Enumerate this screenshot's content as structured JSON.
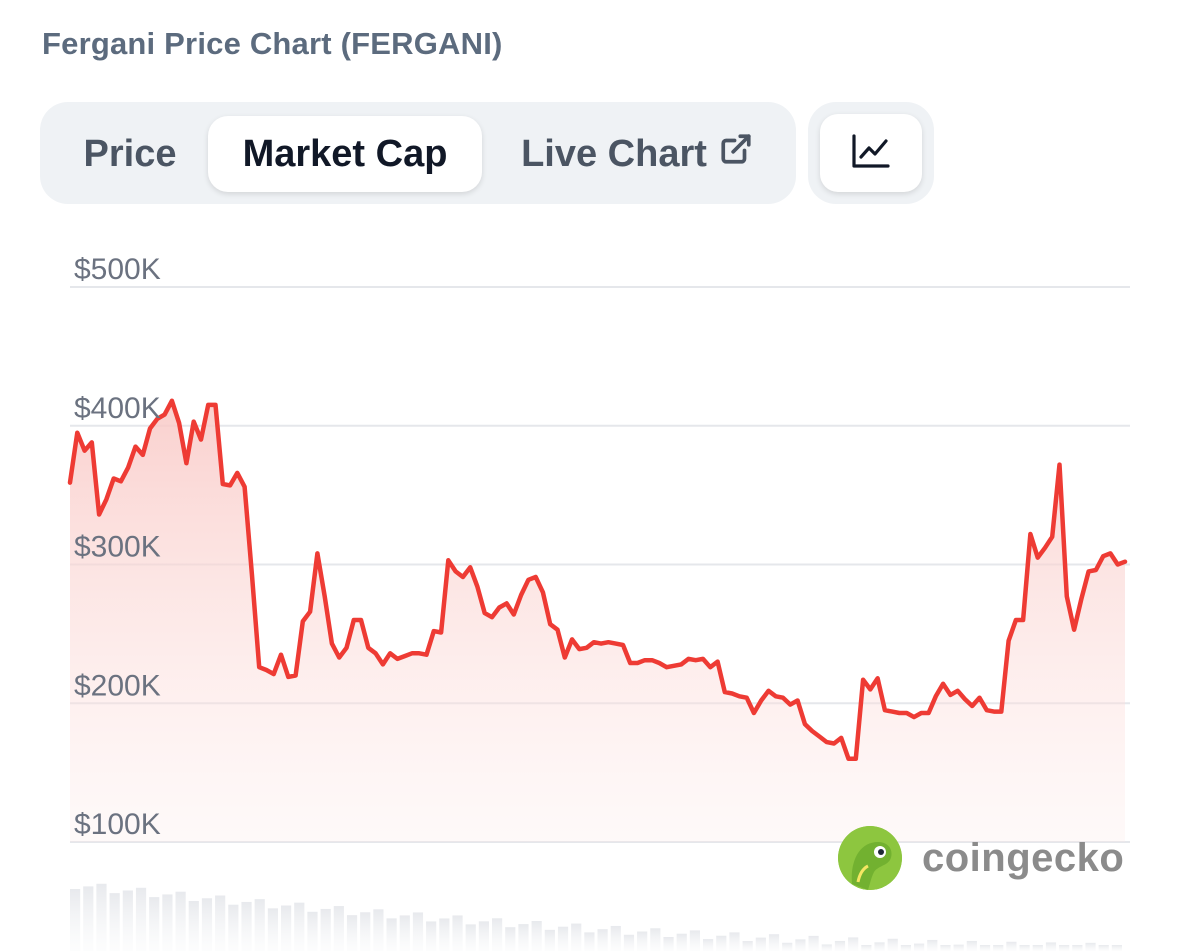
{
  "header": {
    "title": "Fergani Price Chart (FERGANI)"
  },
  "tabs": [
    {
      "label": "Price",
      "active": false
    },
    {
      "label": "Market Cap",
      "active": true
    },
    {
      "label": "Live Chart",
      "active": false,
      "icon": "external-link-icon"
    }
  ],
  "chart_type_button": {
    "icon": "line-chart-icon"
  },
  "watermark": {
    "text": "coingecko",
    "icon": "coingecko-logo"
  },
  "colors": {
    "line": "#ee3b34",
    "area_top": "#f9c8c5",
    "grid": "#e5e7eb",
    "tab_bg": "#eff2f5"
  },
  "chart_data": {
    "type": "area",
    "title": "",
    "xlabel": "",
    "ylabel": "",
    "ylim": [
      100000,
      500000
    ],
    "y_ticks": [
      500000,
      400000,
      300000,
      200000,
      100000
    ],
    "y_tick_labels": [
      "$500K",
      "$400K",
      "$300K",
      "$200K",
      "$100K"
    ],
    "grid": true,
    "legend": "none",
    "series": [
      {
        "values": [
          359000,
          395000,
          382000,
          388000,
          336000,
          347000,
          362000,
          360000,
          370000,
          385000,
          379000,
          398000,
          405000,
          408000,
          418000,
          402000,
          373000,
          403000,
          390000,
          415000,
          415000,
          358000,
          357000,
          366000,
          356000,
          293000,
          226000,
          224000,
          221000,
          235000,
          219000,
          220000,
          259000,
          266000,
          308000,
          277000,
          243000,
          233000,
          240000,
          260000,
          260000,
          240000,
          236000,
          228000,
          236000,
          232000,
          234000,
          236000,
          236000,
          235000,
          252000,
          251000,
          303000,
          295000,
          291000,
          298000,
          284000,
          265000,
          262000,
          269000,
          272000,
          264000,
          278000,
          289000,
          291000,
          280000,
          257000,
          253000,
          233000,
          246000,
          239000,
          240000,
          244000,
          243000,
          244000,
          243000,
          242000,
          229000,
          229000,
          231000,
          231000,
          229000,
          226000,
          227000,
          228000,
          232000,
          231000,
          232000,
          226000,
          230000,
          208000,
          207000,
          205000,
          204000,
          193000,
          202000,
          209000,
          205000,
          204000,
          199000,
          202000,
          185000,
          180000,
          176000,
          172000,
          171000,
          175000,
          160000,
          160000,
          217000,
          210000,
          218000,
          195000,
          194000,
          193000,
          193000,
          190000,
          193000,
          193000,
          205000,
          214000,
          206000,
          209000,
          203000,
          198000,
          204000,
          195000,
          194000,
          194000,
          245000,
          260000,
          260000,
          322000,
          305000,
          312000,
          320000,
          372000,
          277000,
          253000,
          275000,
          295000,
          296000,
          306000,
          308000,
          300000,
          302000
        ]
      }
    ],
    "volume_note": "faint volume bars at bottom (values not readable)"
  }
}
